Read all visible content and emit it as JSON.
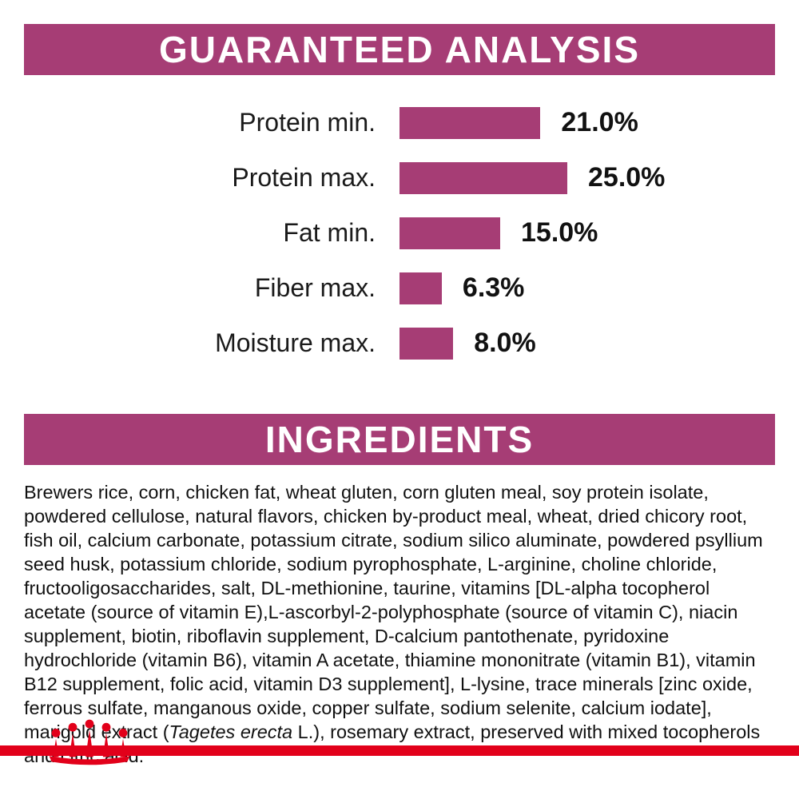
{
  "colors": {
    "magenta": "#a63d75",
    "red": "#e2001a",
    "text": "#111111"
  },
  "guaranteed_analysis": {
    "title": "GUARANTEED ANALYSIS",
    "rows": [
      {
        "label": "Protein min.",
        "value": 21.0,
        "display": "21.0%"
      },
      {
        "label": "Protein max.",
        "value": 25.0,
        "display": "25.0%"
      },
      {
        "label": "Fat min.",
        "value": 15.0,
        "display": "15.0%"
      },
      {
        "label": "Fiber max.",
        "value": 6.3,
        "display": "6.3%"
      },
      {
        "label": "Moisture max.",
        "value": 8.0,
        "display": "8.0%"
      }
    ]
  },
  "ingredients": {
    "title": "INGREDIENTS",
    "text_before": "Brewers rice, corn, chicken fat, wheat gluten, corn gluten meal, soy protein isolate, powdered cellulose, natural flavors, chicken by-product meal, wheat, dried chicory root, fish oil, calcium carbonate, potassium citrate, sodium silico aluminate, powdered psyllium seed husk, potassium chloride, sodium pyrophosphate, L-arginine, choline chloride, fructooligosaccharides, salt, DL-methionine, taurine, vitamins [DL-alpha tocopherol acetate (source of vitamin E),L-ascorbyl-2-polyphosphate (source of vitamin C), niacin supplement, biotin, riboflavin supplement, D-calcium pantothenate, pyridoxine hydrochloride (vitamin B6), vitamin A acetate, thiamine mononitrate (vitamin B1), vitamin B12 supplement, folic acid, vitamin D3 supplement], L-lysine, trace minerals [zinc oxide, ferrous sulfate, manganous oxide, copper sulfate, sodium selenite, calcium iodate], marigold extract (",
    "italic": "Tagetes erecta",
    "text_after": " L.), rosemary extract, preserved with mixed tocopherols and citric acid."
  },
  "logo": {
    "name": "royal-canin-crown"
  },
  "chart_data": {
    "type": "bar",
    "orientation": "horizontal",
    "title": "GUARANTEED ANALYSIS",
    "categories": [
      "Protein min.",
      "Protein max.",
      "Fat min.",
      "Fiber max.",
      "Moisture max."
    ],
    "values": [
      21.0,
      25.0,
      15.0,
      6.3,
      8.0
    ],
    "unit": "%",
    "value_labels": [
      "21.0%",
      "25.0%",
      "15.0%",
      "6.3%",
      "8.0%"
    ],
    "xlim": [
      0,
      30
    ],
    "grid": false,
    "legend": false,
    "bar_color": "#a63d75"
  }
}
